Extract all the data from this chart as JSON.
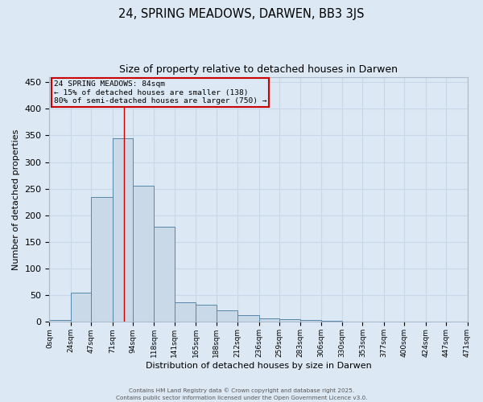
{
  "title1": "24, SPRING MEADOWS, DARWEN, BB3 3JS",
  "title2": "Size of property relative to detached houses in Darwen",
  "xlabel": "Distribution of detached houses by size in Darwen",
  "ylabel": "Number of detached properties",
  "bin_edges": [
    0,
    24,
    47,
    71,
    94,
    118,
    141,
    165,
    188,
    212,
    236,
    259,
    283,
    306,
    330,
    353,
    377,
    400,
    424,
    447,
    471
  ],
  "bin_labels": [
    "0sqm",
    "24sqm",
    "47sqm",
    "71sqm",
    "94sqm",
    "118sqm",
    "141sqm",
    "165sqm",
    "188sqm",
    "212sqm",
    "236sqm",
    "259sqm",
    "283sqm",
    "306sqm",
    "330sqm",
    "353sqm",
    "377sqm",
    "400sqm",
    "424sqm",
    "447sqm",
    "471sqm"
  ],
  "bar_heights": [
    3,
    55,
    235,
    345,
    255,
    178,
    37,
    33,
    22,
    13,
    6,
    5,
    3,
    2,
    1,
    0,
    0,
    0,
    0,
    1
  ],
  "bar_color": "#c9d9e8",
  "bar_edge_color": "#5588aa",
  "property_size": 84,
  "annotation_text": "24 SPRING MEADOWS: 84sqm\n← 15% of detached houses are smaller (138)\n80% of semi-detached houses are larger (750) →",
  "annotation_box_color": "#cc0000",
  "vline_color": "#cc0000",
  "ylim": [
    0,
    460
  ],
  "yticks": [
    0,
    50,
    100,
    150,
    200,
    250,
    300,
    350,
    400,
    450
  ],
  "grid_color": "#c8d8e8",
  "background_color": "#dce8f4",
  "footer1": "Contains HM Land Registry data © Crown copyright and database right 2025.",
  "footer2": "Contains public sector information licensed under the Open Government Licence v3.0."
}
